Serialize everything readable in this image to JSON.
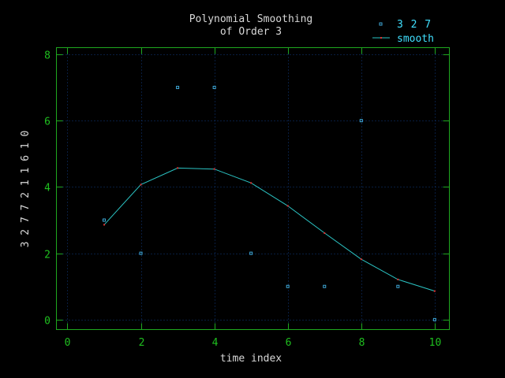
{
  "chart_data": {
    "type": "line",
    "title_line1": "Polynomial Smoothing",
    "title_line2": "of Order 3",
    "xlabel": "time index",
    "ylabel": "3 2 7 7 2 1 1 6 1 0",
    "xlim": [
      -0.3,
      10.4
    ],
    "ylim": [
      -0.3,
      8.2
    ],
    "xticks": [
      0,
      2,
      4,
      6,
      8,
      10
    ],
    "yticks": [
      0,
      2,
      4,
      6,
      8
    ],
    "grid": true,
    "legend_position": "top-right",
    "series": [
      {
        "name": "3 2 7",
        "style": "points",
        "color": "#3fa9d8",
        "x": [
          1,
          2,
          3,
          4,
          5,
          6,
          7,
          8,
          9,
          10
        ],
        "y": [
          3,
          2,
          7,
          7,
          2,
          1,
          1,
          6,
          1,
          0
        ]
      },
      {
        "name": "smooth",
        "style": "linespoints",
        "color": "#2bc4c4",
        "point_color": "#e03030",
        "x": [
          1,
          2,
          3,
          4,
          5,
          6,
          7,
          8,
          9,
          10
        ],
        "y": [
          2.86,
          4.07,
          4.57,
          4.54,
          4.12,
          3.43,
          2.61,
          1.82,
          1.21,
          0.86
        ]
      }
    ],
    "colors": {
      "axis": "#1fa81f",
      "tick_label": "#1fc01f",
      "text": "#d8d8d8",
      "legend_text": "#40e0ff",
      "grid": "#103a80"
    }
  }
}
